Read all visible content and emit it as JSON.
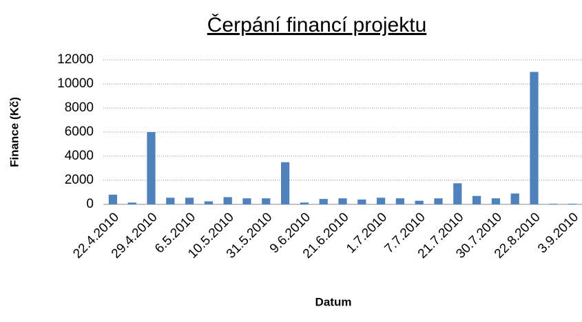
{
  "chart_data": {
    "type": "bar",
    "title": "Čerpání financí projektu",
    "x_label": "Datum",
    "y_label": "Finance (Kč)",
    "categories": [
      "22.4.2010",
      null,
      "29.4.2010",
      null,
      "6.5.2010",
      null,
      "10.5.2010",
      null,
      "31.5.2010",
      null,
      "9.6.2010",
      null,
      "21.6.2010",
      null,
      "1.7.2010",
      null,
      "7.7.2010",
      null,
      "21.7.2010",
      null,
      "30.7.2010",
      null,
      "22.8.2010",
      null,
      "3.9.2010"
    ],
    "values": [
      800,
      150,
      6000,
      550,
      550,
      250,
      600,
      500,
      500,
      3500,
      150,
      450,
      500,
      400,
      550,
      500,
      300,
      500,
      1750,
      700,
      500,
      900,
      11000,
      50,
      50
    ],
    "color": "#4f81bd",
    "ylim": [
      0,
      12000
    ],
    "yticks": [
      0,
      2000,
      4000,
      6000,
      8000,
      10000,
      12000
    ],
    "grid": true
  }
}
